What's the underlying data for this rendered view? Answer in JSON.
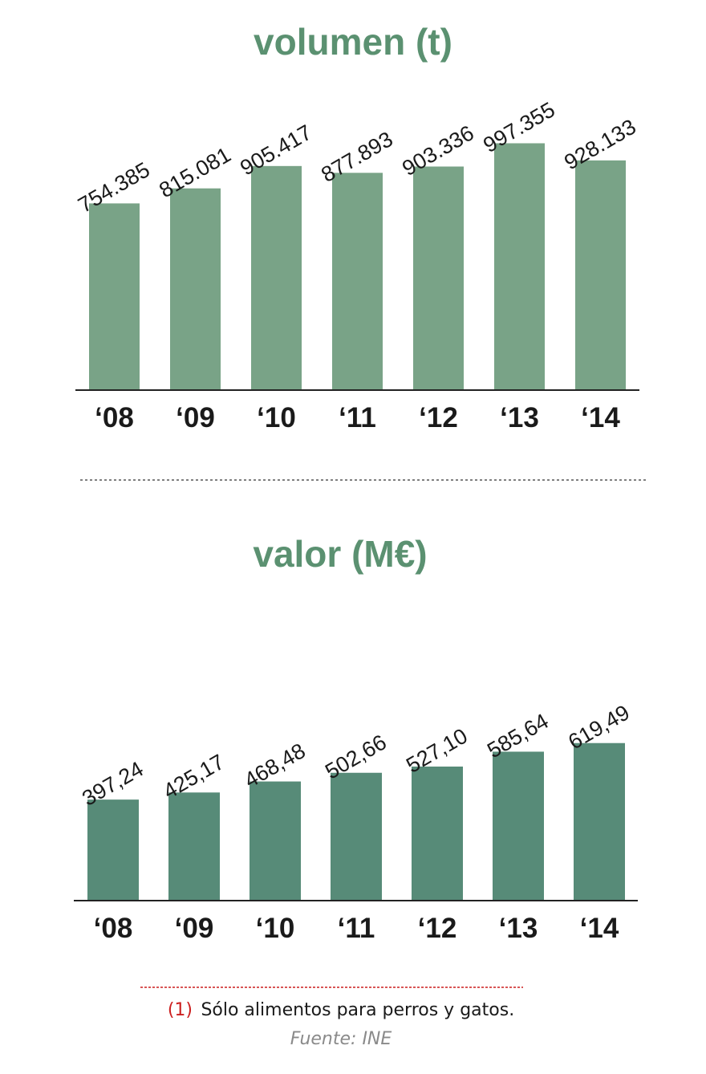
{
  "colors": {
    "title": "#5b9171",
    "bars_volumen": "#79a387",
    "bars_valor": "#578b78",
    "axis": "#222222",
    "note_accent": "#cc1f1f",
    "source": "#8a8a8a",
    "separator": "#555555"
  },
  "chart_data": [
    {
      "type": "bar",
      "title": "volumen (t)",
      "categories": [
        "‘08",
        "‘09",
        "‘10",
        "‘11",
        "‘12",
        "‘13",
        "‘14"
      ],
      "values": [
        754385,
        815081,
        905417,
        877893,
        903336,
        997355,
        928133
      ],
      "value_labels": [
        "754.385",
        "815.081",
        "905.417",
        "877.893",
        "903.336",
        "997.355",
        "928.133"
      ],
      "ylim": [
        0,
        1080000
      ],
      "grid": false
    },
    {
      "type": "bar",
      "title": "valor (M€)",
      "categories": [
        "‘08",
        "‘09",
        "‘10",
        "‘11",
        "‘12",
        "‘13",
        "‘14"
      ],
      "values": [
        397.24,
        425.17,
        468.48,
        502.66,
        527.1,
        585.64,
        619.49
      ],
      "value_labels": [
        "397,24",
        "425,17",
        "468,48",
        "502,66",
        "527,10",
        "585,64",
        "619,49"
      ],
      "ylim": [
        0,
        1010
      ],
      "grid": false
    }
  ],
  "footnote": {
    "number": "(1)",
    "text": "Sólo alimentos para perros y gatos.",
    "source": "Fuente: INE"
  }
}
